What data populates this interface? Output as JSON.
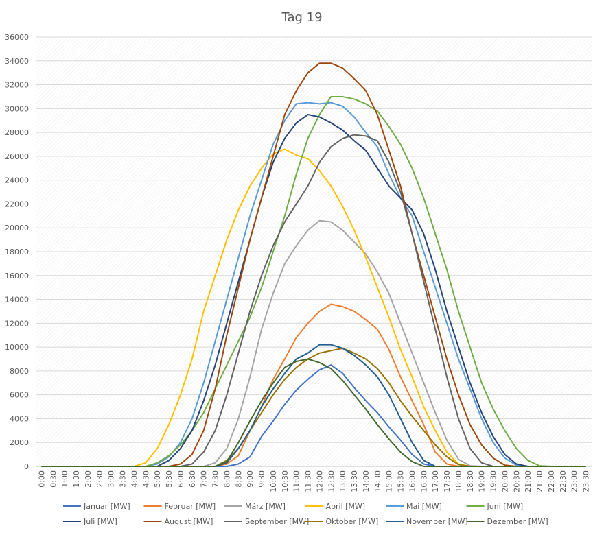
{
  "chart_data": {
    "type": "line",
    "title": "Tag 19",
    "categories": [
      "0:00",
      "0:30",
      "1:00",
      "1:30",
      "2:00",
      "2:30",
      "3:00",
      "3:30",
      "4:00",
      "4:30",
      "5:00",
      "5:30",
      "6:00",
      "6:30",
      "7:00",
      "7:30",
      "8:00",
      "8:30",
      "9:00",
      "9:30",
      "10:00",
      "10:30",
      "11:00",
      "11:30",
      "12:00",
      "12:30",
      "13:00",
      "13:30",
      "14:00",
      "14:30",
      "15:00",
      "15:30",
      "16:00",
      "16:30",
      "17:00",
      "17:30",
      "18:00",
      "18:30",
      "19:00",
      "19:30",
      "20:00",
      "20:30",
      "21:00",
      "21:30",
      "22:00",
      "22:30",
      "23:00",
      "23:30"
    ],
    "ylim": [
      0,
      36000
    ],
    "yticks": [
      0,
      2000,
      4000,
      6000,
      8000,
      10000,
      12000,
      14000,
      16000,
      18000,
      20000,
      22000,
      24000,
      26000,
      28000,
      30000,
      32000,
      34000,
      36000
    ],
    "grid": true,
    "legend": "bottom",
    "series": [
      {
        "name": "Januar [MW]",
        "color": "#4472c4",
        "values": [
          0,
          0,
          0,
          0,
          0,
          0,
          0,
          0,
          0,
          0,
          0,
          0,
          0,
          0,
          0,
          0,
          0,
          200,
          800,
          2500,
          3800,
          5200,
          6400,
          7300,
          8100,
          8500,
          7800,
          6600,
          5500,
          4500,
          3300,
          2200,
          1000,
          200,
          0,
          0,
          0,
          0,
          0,
          0,
          0,
          0,
          0,
          0,
          0,
          0,
          0,
          0
        ]
      },
      {
        "name": "Februar [MW]",
        "color": "#ed7d31",
        "values": [
          0,
          0,
          0,
          0,
          0,
          0,
          0,
          0,
          0,
          0,
          0,
          0,
          0,
          0,
          0,
          0,
          200,
          900,
          3000,
          5000,
          7300,
          9000,
          10800,
          12000,
          13000,
          13600,
          13400,
          13000,
          12300,
          11500,
          9800,
          7500,
          5500,
          3500,
          1200,
          200,
          0,
          0,
          0,
          0,
          0,
          0,
          0,
          0,
          0,
          0,
          0,
          0
        ]
      },
      {
        "name": "März [MW]",
        "color": "#a5a5a5",
        "values": [
          0,
          0,
          0,
          0,
          0,
          0,
          0,
          0,
          0,
          0,
          0,
          0,
          0,
          0,
          0,
          300,
          1500,
          4000,
          7500,
          11500,
          14500,
          17000,
          18500,
          19800,
          20600,
          20500,
          19800,
          18800,
          17800,
          16300,
          14500,
          12000,
          9500,
          7000,
          4500,
          2200,
          600,
          50,
          0,
          0,
          0,
          0,
          0,
          0,
          0,
          0,
          0,
          0
        ]
      },
      {
        "name": "April [MW]",
        "color": "#ffc000",
        "values": [
          0,
          0,
          0,
          0,
          0,
          0,
          0,
          0,
          0,
          300,
          1500,
          3500,
          6000,
          9000,
          13000,
          16000,
          19000,
          21500,
          23500,
          25000,
          26200,
          26600,
          26100,
          25800,
          24800,
          23500,
          21800,
          19800,
          17500,
          15000,
          12500,
          9800,
          7500,
          5000,
          3000,
          1200,
          200,
          0,
          0,
          0,
          0,
          0,
          0,
          0,
          0,
          0,
          0,
          0
        ]
      },
      {
        "name": "Mai [MW]",
        "color": "#5b9bd5",
        "values": [
          0,
          0,
          0,
          0,
          0,
          0,
          0,
          0,
          0,
          0,
          200,
          800,
          2000,
          4000,
          7000,
          10500,
          14000,
          17500,
          21000,
          24000,
          27000,
          29000,
          30400,
          30500,
          30400,
          30500,
          30200,
          29300,
          28000,
          26800,
          24500,
          22500,
          21000,
          18000,
          15000,
          12000,
          9000,
          6500,
          4000,
          2000,
          700,
          100,
          0,
          0,
          0,
          0,
          0,
          0
        ]
      },
      {
        "name": "Juni [MW]",
        "color": "#70ad47",
        "values": [
          0,
          0,
          0,
          0,
          0,
          0,
          0,
          0,
          0,
          0,
          300,
          900,
          1800,
          3000,
          4500,
          6500,
          8500,
          10500,
          12500,
          15000,
          18000,
          21000,
          24500,
          27500,
          29500,
          31000,
          31000,
          30800,
          30400,
          29800,
          28500,
          27000,
          25000,
          22500,
          19500,
          16500,
          13000,
          10000,
          7000,
          4800,
          3000,
          1500,
          500,
          50,
          0,
          0,
          0,
          0
        ]
      },
      {
        "name": "Juli [MW]",
        "color": "#264478",
        "values": [
          0,
          0,
          0,
          0,
          0,
          0,
          0,
          0,
          0,
          0,
          0,
          500,
          1500,
          3000,
          5500,
          8500,
          12000,
          15500,
          19000,
          22500,
          25500,
          27500,
          28800,
          29500,
          29300,
          28800,
          28200,
          27300,
          26500,
          25000,
          23500,
          22500,
          21500,
          19500,
          16500,
          13000,
          10000,
          7000,
          4500,
          2500,
          1000,
          200,
          0,
          0,
          0,
          0,
          0,
          0
        ]
      },
      {
        "name": "August [MW]",
        "color": "#9e480e",
        "values": [
          0,
          0,
          0,
          0,
          0,
          0,
          0,
          0,
          0,
          0,
          0,
          0,
          200,
          1000,
          3000,
          6500,
          11000,
          15000,
          19000,
          22500,
          26000,
          29500,
          31500,
          33000,
          33800,
          33800,
          33400,
          32500,
          31500,
          29500,
          26500,
          23500,
          19500,
          16000,
          12500,
          9000,
          6000,
          3500,
          1800,
          700,
          100,
          0,
          0,
          0,
          0,
          0,
          0,
          0
        ]
      },
      {
        "name": "September [MW]",
        "color": "#636363",
        "values": [
          0,
          0,
          0,
          0,
          0,
          0,
          0,
          0,
          0,
          0,
          0,
          0,
          0,
          200,
          1200,
          3000,
          6000,
          9500,
          13000,
          16000,
          18500,
          20500,
          22000,
          23500,
          25500,
          26800,
          27500,
          27800,
          27700,
          27300,
          25500,
          23000,
          19500,
          15500,
          11500,
          7500,
          4000,
          1500,
          300,
          0,
          0,
          0,
          0,
          0,
          0,
          0,
          0,
          0
        ]
      },
      {
        "name": "Oktober [MW]",
        "color": "#997300",
        "values": [
          0,
          0,
          0,
          0,
          0,
          0,
          0,
          0,
          0,
          0,
          0,
          0,
          0,
          0,
          0,
          0,
          500,
          1500,
          3000,
          4500,
          6000,
          7300,
          8300,
          9000,
          9500,
          9700,
          9900,
          9500,
          9000,
          8200,
          7000,
          5500,
          4200,
          3000,
          1800,
          800,
          150,
          0,
          0,
          0,
          0,
          0,
          0,
          0,
          0,
          0,
          0,
          0
        ]
      },
      {
        "name": "November [MW]",
        "color": "#255e91",
        "values": [
          0,
          0,
          0,
          0,
          0,
          0,
          0,
          0,
          0,
          0,
          0,
          0,
          0,
          0,
          0,
          0,
          300,
          1500,
          3000,
          5000,
          6500,
          7800,
          9000,
          9500,
          10200,
          10200,
          9900,
          9300,
          8500,
          7500,
          6000,
          4000,
          2000,
          500,
          0,
          0,
          0,
          0,
          0,
          0,
          0,
          0,
          0,
          0,
          0,
          0,
          0,
          0
        ]
      },
      {
        "name": "Dezember [MW]",
        "color": "#43682b",
        "values": [
          0,
          0,
          0,
          0,
          0,
          0,
          0,
          0,
          0,
          0,
          0,
          0,
          0,
          0,
          0,
          0,
          400,
          2000,
          3800,
          5500,
          7000,
          8300,
          8800,
          9000,
          8700,
          8200,
          7200,
          6000,
          4800,
          3500,
          2300,
          1200,
          400,
          0,
          0,
          0,
          0,
          0,
          0,
          0,
          0,
          0,
          0,
          0,
          0,
          0,
          0,
          0
        ]
      }
    ]
  }
}
